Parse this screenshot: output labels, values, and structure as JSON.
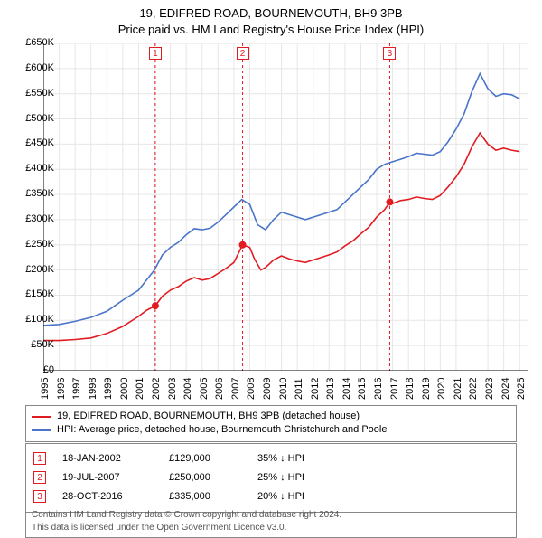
{
  "title_line1": "19, EDIFRED ROAD, BOURNEMOUTH, BH9 3PB",
  "title_line2": "Price paid vs. HM Land Registry's House Price Index (HPI)",
  "title_fontsize": 13,
  "colors": {
    "series_paid": "#e11b22",
    "series_hpi": "#4a74c9",
    "grid": "#e6e6e6",
    "marker_dashed": "#e11b22",
    "axis": "#000000",
    "box_border": "#888888",
    "attribution_text": "#555555",
    "background": "#ffffff"
  },
  "chart": {
    "type": "line",
    "x_min_year": 1995.0,
    "x_max_year": 2025.5,
    "y_min": 0,
    "y_max": 650000,
    "y_tick_step": 50000,
    "y_tick_labels": [
      "£0",
      "£50K",
      "£100K",
      "£150K",
      "£200K",
      "£250K",
      "£300K",
      "£350K",
      "£400K",
      "£450K",
      "£500K",
      "£550K",
      "£600K",
      "£650K"
    ],
    "x_tick_years": [
      1995,
      1996,
      1997,
      1998,
      1999,
      2000,
      2001,
      2002,
      2003,
      2004,
      2005,
      2006,
      2007,
      2008,
      2009,
      2010,
      2011,
      2012,
      2013,
      2014,
      2015,
      2016,
      2017,
      2018,
      2019,
      2020,
      2021,
      2022,
      2023,
      2024,
      2025
    ],
    "line_width": 1.6,
    "series_hpi": [
      [
        1995.0,
        90000
      ],
      [
        1996.0,
        92000
      ],
      [
        1997.0,
        98000
      ],
      [
        1998.0,
        106000
      ],
      [
        1999.0,
        118000
      ],
      [
        2000.0,
        140000
      ],
      [
        2001.0,
        160000
      ],
      [
        2002.0,
        200000
      ],
      [
        2002.5,
        230000
      ],
      [
        2003.0,
        245000
      ],
      [
        2003.5,
        255000
      ],
      [
        2004.0,
        270000
      ],
      [
        2004.5,
        282000
      ],
      [
        2005.0,
        280000
      ],
      [
        2005.5,
        283000
      ],
      [
        2006.0,
        295000
      ],
      [
        2006.5,
        310000
      ],
      [
        2007.0,
        325000
      ],
      [
        2007.5,
        340000
      ],
      [
        2008.0,
        330000
      ],
      [
        2008.5,
        290000
      ],
      [
        2009.0,
        280000
      ],
      [
        2009.5,
        300000
      ],
      [
        2010.0,
        315000
      ],
      [
        2010.5,
        310000
      ],
      [
        2011.0,
        305000
      ],
      [
        2011.5,
        300000
      ],
      [
        2012.0,
        305000
      ],
      [
        2012.5,
        310000
      ],
      [
        2013.0,
        315000
      ],
      [
        2013.5,
        320000
      ],
      [
        2014.0,
        335000
      ],
      [
        2014.5,
        350000
      ],
      [
        2015.0,
        365000
      ],
      [
        2015.5,
        380000
      ],
      [
        2016.0,
        400000
      ],
      [
        2016.5,
        410000
      ],
      [
        2017.0,
        415000
      ],
      [
        2017.5,
        420000
      ],
      [
        2018.0,
        425000
      ],
      [
        2018.5,
        432000
      ],
      [
        2019.0,
        430000
      ],
      [
        2019.5,
        428000
      ],
      [
        2020.0,
        435000
      ],
      [
        2020.5,
        455000
      ],
      [
        2021.0,
        480000
      ],
      [
        2021.5,
        510000
      ],
      [
        2022.0,
        555000
      ],
      [
        2022.5,
        590000
      ],
      [
        2023.0,
        560000
      ],
      [
        2023.5,
        545000
      ],
      [
        2024.0,
        550000
      ],
      [
        2024.5,
        548000
      ],
      [
        2025.0,
        540000
      ]
    ],
    "series_paid": [
      [
        1995.0,
        60000
      ],
      [
        1996.0,
        60000
      ],
      [
        1997.0,
        62000
      ],
      [
        1998.0,
        65000
      ],
      [
        1999.0,
        74000
      ],
      [
        2000.0,
        88000
      ],
      [
        2001.0,
        108000
      ],
      [
        2001.5,
        120000
      ],
      [
        2002.05,
        129000
      ],
      [
        2002.5,
        148000
      ],
      [
        2003.0,
        160000
      ],
      [
        2003.5,
        167000
      ],
      [
        2004.0,
        178000
      ],
      [
        2004.5,
        185000
      ],
      [
        2005.0,
        180000
      ],
      [
        2005.5,
        183000
      ],
      [
        2006.0,
        193000
      ],
      [
        2006.5,
        203000
      ],
      [
        2007.0,
        215000
      ],
      [
        2007.55,
        250000
      ],
      [
        2008.0,
        245000
      ],
      [
        2008.3,
        222000
      ],
      [
        2008.7,
        200000
      ],
      [
        2009.0,
        205000
      ],
      [
        2009.5,
        220000
      ],
      [
        2010.0,
        228000
      ],
      [
        2010.5,
        222000
      ],
      [
        2011.0,
        218000
      ],
      [
        2011.5,
        215000
      ],
      [
        2012.0,
        220000
      ],
      [
        2012.5,
        225000
      ],
      [
        2013.0,
        230000
      ],
      [
        2013.5,
        236000
      ],
      [
        2014.0,
        248000
      ],
      [
        2014.5,
        258000
      ],
      [
        2015.0,
        272000
      ],
      [
        2015.5,
        285000
      ],
      [
        2016.0,
        305000
      ],
      [
        2016.5,
        320000
      ],
      [
        2016.82,
        335000
      ],
      [
        2017.0,
        332000
      ],
      [
        2017.5,
        338000
      ],
      [
        2018.0,
        340000
      ],
      [
        2018.5,
        345000
      ],
      [
        2019.0,
        342000
      ],
      [
        2019.5,
        340000
      ],
      [
        2020.0,
        348000
      ],
      [
        2020.5,
        365000
      ],
      [
        2021.0,
        385000
      ],
      [
        2021.5,
        410000
      ],
      [
        2022.0,
        445000
      ],
      [
        2022.5,
        472000
      ],
      [
        2023.0,
        450000
      ],
      [
        2023.5,
        438000
      ],
      [
        2024.0,
        442000
      ],
      [
        2024.5,
        438000
      ],
      [
        2025.0,
        435000
      ]
    ],
    "sale_markers": [
      {
        "n": "1",
        "year": 2002.05,
        "price": 129000
      },
      {
        "n": "2",
        "year": 2007.55,
        "price": 250000
      },
      {
        "n": "3",
        "year": 2016.82,
        "price": 335000
      }
    ]
  },
  "legend": {
    "items": [
      {
        "color": "#e11b22",
        "label": "19, EDIFRED ROAD, BOURNEMOUTH, BH9 3PB (detached house)"
      },
      {
        "color": "#4a74c9",
        "label": "HPI: Average price, detached house, Bournemouth Christchurch and Poole"
      }
    ]
  },
  "sales": [
    {
      "n": "1",
      "date": "18-JAN-2002",
      "price": "£129,000",
      "pct": "35% ↓ HPI"
    },
    {
      "n": "2",
      "date": "19-JUL-2007",
      "price": "£250,000",
      "pct": "25% ↓ HPI"
    },
    {
      "n": "3",
      "date": "28-OCT-2016",
      "price": "£335,000",
      "pct": "20% ↓ HPI"
    }
  ],
  "attribution_line1": "Contains HM Land Registry data © Crown copyright and database right 2024.",
  "attribution_line2": "This data is licensed under the Open Government Licence v3.0."
}
